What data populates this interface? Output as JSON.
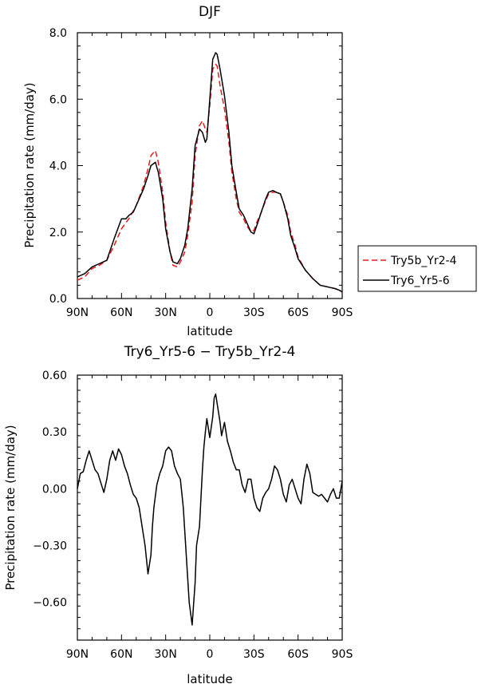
{
  "chart_data": [
    {
      "type": "line",
      "title": "DJF",
      "xlabel": "latitude",
      "ylabel": "Precipitation rate (mm/day)",
      "xlim": [
        90,
        -90
      ],
      "ylim": [
        0,
        8
      ],
      "x_ticks": [
        90,
        60,
        30,
        0,
        -30,
        -60,
        -90
      ],
      "x_tick_labels": [
        "90N",
        "60N",
        "30N",
        "0",
        "30S",
        "60S",
        "90S"
      ],
      "y_ticks": [
        0,
        2,
        4,
        6,
        8
      ],
      "y_tick_labels": [
        "0.0",
        "2.0",
        "4.0",
        "6.0",
        "8.0"
      ],
      "grid": false,
      "legend_position": "right",
      "series": [
        {
          "name": "Try5b_Yr2-4",
          "color": "#e8191e",
          "dash": "dashed",
          "x": [
            90,
            85,
            80,
            75,
            70,
            65,
            60,
            55,
            50,
            45,
            42,
            40,
            37,
            35,
            32,
            30,
            27,
            25,
            22,
            20,
            17,
            15,
            12,
            10,
            7,
            5,
            3,
            2,
            0,
            -2,
            -4,
            -5,
            -7,
            -10,
            -13,
            -15,
            -18,
            -20,
            -23,
            -25,
            -28,
            -30,
            -32,
            -35,
            -38,
            -40,
            -43,
            -45,
            -48,
            -50,
            -53,
            -55,
            -58,
            -60,
            -65,
            -70,
            -75,
            -80,
            -85,
            -88,
            -90
          ],
          "y": [
            0.55,
            0.65,
            0.9,
            1.0,
            1.15,
            1.6,
            2.1,
            2.4,
            2.8,
            3.4,
            3.9,
            4.3,
            4.45,
            4.1,
            3.2,
            2.3,
            1.4,
            1.0,
            0.95,
            1.1,
            1.4,
            1.9,
            2.9,
            4.3,
            5.2,
            5.35,
            5.1,
            5.0,
            5.8,
            6.9,
            7.05,
            7.0,
            6.4,
            5.7,
            4.7,
            3.8,
            3.0,
            2.6,
            2.4,
            2.2,
            2.0,
            2.05,
            2.3,
            2.6,
            2.95,
            3.15,
            3.2,
            3.2,
            3.15,
            2.9,
            2.5,
            2.0,
            1.6,
            1.25,
            0.85,
            0.6,
            0.4,
            0.35,
            0.3,
            0.25,
            0.2
          ]
        },
        {
          "name": "Try6_Yr5-6",
          "color": "#000000",
          "dash": "solid",
          "x": [
            90,
            85,
            80,
            75,
            70,
            65,
            60,
            57,
            55,
            52,
            50,
            45,
            42,
            40,
            37,
            35,
            32,
            30,
            27,
            25,
            22,
            20,
            17,
            15,
            12,
            10,
            7,
            5,
            3,
            2,
            0,
            -2,
            -4,
            -5,
            -7,
            -10,
            -13,
            -15,
            -18,
            -20,
            -23,
            -25,
            -28,
            -30,
            -32,
            -35,
            -38,
            -40,
            -43,
            -45,
            -48,
            -50,
            -53,
            -55,
            -58,
            -60,
            -65,
            -70,
            -75,
            -80,
            -85,
            -88,
            -90
          ],
          "y": [
            0.65,
            0.75,
            0.95,
            1.05,
            1.15,
            1.8,
            2.4,
            2.4,
            2.5,
            2.6,
            2.8,
            3.3,
            3.7,
            4.0,
            4.1,
            3.8,
            3.0,
            2.1,
            1.4,
            1.1,
            1.05,
            1.2,
            1.6,
            2.1,
            3.3,
            4.6,
            5.1,
            5.0,
            4.7,
            4.8,
            6.0,
            7.2,
            7.4,
            7.35,
            6.9,
            6.1,
            5.0,
            4.0,
            3.2,
            2.7,
            2.5,
            2.3,
            2.0,
            1.95,
            2.2,
            2.6,
            3.0,
            3.2,
            3.25,
            3.2,
            3.15,
            2.9,
            2.4,
            1.9,
            1.5,
            1.2,
            0.85,
            0.6,
            0.4,
            0.35,
            0.3,
            0.25,
            0.2
          ]
        }
      ]
    },
    {
      "type": "line",
      "title": "Try6_Yr5-6 − Try5b_Yr2-4",
      "xlabel": "latitude",
      "ylabel": "Precipitation rate (mm/day)",
      "xlim": [
        90,
        -90
      ],
      "ylim": [
        -0.8,
        0.6
      ],
      "x_ticks": [
        90,
        60,
        30,
        0,
        -30,
        -60,
        -90
      ],
      "x_tick_labels": [
        "90N",
        "60N",
        "30N",
        "0",
        "30S",
        "60S",
        "90S"
      ],
      "y_ticks": [
        -0.6,
        -0.3,
        0,
        0.3,
        0.6
      ],
      "y_tick_labels": [
        "−0.60",
        "−0.30",
        "0.00",
        "0.30",
        "0.60"
      ],
      "grid": false,
      "series": [
        {
          "name": "",
          "color": "#000000",
          "dash": "solid",
          "x": [
            90,
            88,
            86,
            84,
            82,
            80,
            78,
            76,
            74,
            72,
            70,
            68,
            66,
            64,
            62,
            60,
            58,
            56,
            54,
            52,
            50,
            48,
            46,
            44,
            42,
            40,
            39,
            38,
            36,
            34,
            32,
            30,
            28,
            26,
            24,
            22,
            20,
            18,
            16,
            14,
            12,
            10,
            9,
            8,
            7,
            6,
            5,
            4,
            3,
            2,
            0,
            -2,
            -3,
            -4,
            -5,
            -6,
            -7,
            -8,
            -10,
            -12,
            -14,
            -16,
            -18,
            -20,
            -22,
            -24,
            -26,
            -28,
            -30,
            -32,
            -34,
            -36,
            -38,
            -40,
            -42,
            -44,
            -46,
            -48,
            -50,
            -52,
            -54,
            -56,
            -58,
            -60,
            -62,
            -64,
            -66,
            -68,
            -70,
            -72,
            -74,
            -76,
            -78,
            -80,
            -82,
            -84,
            -86,
            -88,
            -90
          ],
          "y": [
            0.0,
            0.08,
            0.09,
            0.15,
            0.2,
            0.15,
            0.1,
            0.08,
            0.03,
            -0.02,
            0.05,
            0.15,
            0.2,
            0.15,
            0.21,
            0.18,
            0.12,
            0.08,
            0.02,
            -0.03,
            -0.05,
            -0.1,
            -0.2,
            -0.3,
            -0.45,
            -0.35,
            -0.2,
            -0.1,
            0.02,
            0.08,
            0.12,
            0.2,
            0.22,
            0.2,
            0.12,
            0.08,
            0.05,
            -0.1,
            -0.35,
            -0.6,
            -0.72,
            -0.5,
            -0.3,
            -0.25,
            -0.2,
            -0.05,
            0.1,
            0.22,
            0.3,
            0.37,
            0.27,
            0.38,
            0.48,
            0.5,
            0.45,
            0.4,
            0.35,
            0.28,
            0.35,
            0.25,
            0.2,
            0.14,
            0.1,
            0.1,
            0.02,
            -0.02,
            0.05,
            0.05,
            -0.05,
            -0.1,
            -0.12,
            -0.05,
            -0.02,
            0.0,
            0.05,
            0.12,
            0.1,
            0.05,
            -0.03,
            -0.07,
            0.02,
            0.05,
            0.0,
            -0.05,
            -0.08,
            0.05,
            0.13,
            0.08,
            -0.02,
            -0.03,
            -0.04,
            -0.03,
            -0.05,
            -0.07,
            -0.03,
            0.0,
            -0.05,
            -0.05,
            0.04
          ]
        }
      ]
    }
  ]
}
